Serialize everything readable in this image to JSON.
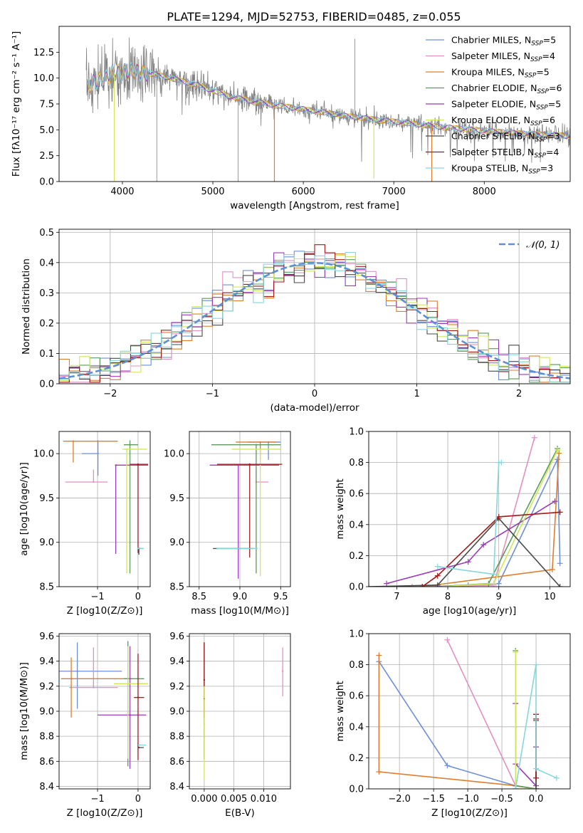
{
  "figure_title": "PLATE=1294, MJD=52753, FIBERID=0485, z=0.055",
  "colors": {
    "Chabrier MILES": "#6d8fd8",
    "Salpeter MILES": "#e48fc2",
    "Kroupa MILES": "#e07d2c",
    "Chabrier ELODIE": "#5b9a5b",
    "Salpeter ELODIE": "#9a3bb8",
    "Kroupa ELODIE": "#cfe85a",
    "Chabrier STELIB": "#4a4a4a",
    "Salpeter STELIB": "#a31919",
    "Kroupa STELIB": "#86d6dc",
    "data": "#808080",
    "normal": "#5b8fd6"
  },
  "chart_data": [
    {
      "id": "spectrum",
      "type": "line",
      "title": "PLATE=1294, MJD=52753, FIBERID=0485, z=0.055",
      "xlabel": "wavelength [Angstrom, rest frame]",
      "ylabel": "Flux [fλ10⁻¹⁷ erg cm⁻² s⁻¹ A⁻¹]",
      "xlim": [
        3300,
        8950
      ],
      "ylim": [
        0,
        15
      ],
      "xticks": [
        4000,
        5000,
        6000,
        7000,
        8000
      ],
      "yticks": [
        0.0,
        2.5,
        5.0,
        7.5,
        10.0,
        12.5
      ],
      "grid": false,
      "legend_position": "upper-right",
      "legend": [
        {
          "name": "Chabrier MILES",
          "n": "5"
        },
        {
          "name": "Salpeter MILES",
          "n": "4"
        },
        {
          "name": "Kroupa MILES",
          "n": "5"
        },
        {
          "name": "Chabrier ELODIE",
          "n": "6"
        },
        {
          "name": "Salpeter ELODIE",
          "n": "5"
        },
        {
          "name": "Kroupa ELODIE",
          "n": "6"
        },
        {
          "name": "Chabrier STELIB",
          "n": "3"
        },
        {
          "name": "Salpeter STELIB",
          "n": "4"
        },
        {
          "name": "Kroupa STELIB",
          "n": "3"
        }
      ],
      "continuum": {
        "x": [
          3600,
          3750,
          3900,
          4100,
          4400,
          4800,
          5200,
          5600,
          6000,
          6500,
          7000,
          7500,
          8000,
          8500,
          8950
        ],
        "y": [
          9.2,
          9.8,
          10.5,
          10.7,
          10.3,
          9.4,
          8.2,
          7.5,
          7.0,
          6.3,
          5.8,
          5.3,
          4.9,
          4.6,
          4.4
        ]
      },
      "data_spikes": [
        {
          "x": 5280,
          "y": 0.0
        },
        {
          "x": 6570,
          "y": 13.8
        },
        {
          "x": 3910,
          "y": 0.0
        },
        {
          "x": 4380,
          "y": 0.0
        }
      ],
      "model_dips": [
        {
          "x": 3910,
          "y": 0.0
        },
        {
          "x": 5680,
          "y": 0.0
        },
        {
          "x": 6780,
          "y": 0.3
        },
        {
          "x": 7420,
          "y": 0.0
        }
      ]
    },
    {
      "id": "residuals",
      "type": "histogram",
      "xlabel": "(data-model)/error",
      "ylabel": "Normed distribution",
      "xlim": [
        -2.5,
        2.5
      ],
      "ylim": [
        0,
        0.51
      ],
      "xticks": [
        -2,
        -1,
        0,
        1,
        2
      ],
      "yticks": [
        0.0,
        0.1,
        0.2,
        0.3,
        0.4,
        0.5
      ],
      "grid": true,
      "legend_position": "upper-right",
      "legend": [
        "𝒩(0, 1)"
      ],
      "bin_width": 0.1
    },
    {
      "id": "age_vs_Z",
      "type": "errorbar",
      "xlabel": "Z [log10(Z/Z⊙)]",
      "ylabel": "age  [log10(age/yr)]",
      "xlim": [
        -1.95,
        0.3
      ],
      "ylim": [
        8.5,
        10.25
      ],
      "xticks": [
        -1,
        0
      ],
      "yticks": [
        8.5,
        9.0,
        9.5,
        10.0
      ],
      "grid": true,
      "points": [
        {
          "series": "Chabrier MILES",
          "x": -0.99,
          "y": 10.0,
          "xerr": [
            0.4,
            0.0
          ],
          "yerr": [
            0.25,
            0.15
          ]
        },
        {
          "series": "Salpeter MILES",
          "x": -1.1,
          "y": 9.68,
          "xerr": [
            0.7,
            0.35
          ],
          "yerr": [
            0.0,
            0.14
          ]
        },
        {
          "series": "Kroupa MILES",
          "x": -1.6,
          "y": 10.14,
          "xerr": [
            0.25,
            1.1
          ],
          "yerr": [
            0.24,
            0.0
          ]
        },
        {
          "series": "Chabrier ELODIE",
          "x": -0.2,
          "y": 10.1,
          "xerr": [
            0.15,
            0.2
          ],
          "yerr": [
            1.45,
            0.05
          ]
        },
        {
          "series": "Salpeter ELODIE",
          "x": -0.55,
          "y": 9.87,
          "xerr": [
            0.0,
            0.8
          ],
          "yerr": [
            1.0,
            0.0
          ]
        },
        {
          "series": "Kroupa ELODIE",
          "x": -0.28,
          "y": 10.05,
          "xerr": [
            0.1,
            0.5
          ],
          "yerr": [
            1.4,
            0.0
          ]
        },
        {
          "series": "Chabrier STELIB",
          "x": 0.02,
          "y": 8.93,
          "xerr": [
            0.0,
            0.1
          ],
          "yerr": [
            0.07,
            0.0
          ]
        },
        {
          "series": "Salpeter STELIB",
          "x": 0.0,
          "y": 9.88,
          "xerr": [
            0.2,
            0.25
          ],
          "yerr": [
            1.0,
            0.0
          ]
        },
        {
          "series": "Kroupa STELIB",
          "x": 0.0,
          "y": 8.93,
          "xerr": [
            0.0,
            0.15
          ],
          "yerr": [
            0.0,
            0.0
          ]
        }
      ]
    },
    {
      "id": "age_vs_mass",
      "type": "errorbar",
      "xlabel": "mass [log10(M/M⊙)]",
      "ylabel": "",
      "xlim": [
        8.38,
        9.62
      ],
      "ylim": [
        8.5,
        10.25
      ],
      "xticks": [
        8.5,
        9.0,
        9.5
      ],
      "yticks": [
        8.5,
        9.0,
        9.5,
        10.0
      ],
      "grid": true,
      "points": [
        {
          "series": "Chabrier MILES",
          "x": 9.35,
          "y": 10.13,
          "xerr": [
            0.25,
            0.15
          ],
          "yerr": [
            0.2,
            0.0
          ]
        },
        {
          "series": "Salpeter MILES",
          "x": 9.2,
          "y": 9.68,
          "xerr": [
            0.0,
            0.15
          ],
          "yerr": [
            0.0,
            0.14
          ]
        },
        {
          "series": "Kroupa MILES",
          "x": 9.25,
          "y": 10.13,
          "xerr": [
            0.3,
            0.2
          ],
          "yerr": [
            0.2,
            0.0
          ]
        },
        {
          "series": "Chabrier ELODIE",
          "x": 9.2,
          "y": 10.1,
          "xerr": [
            0.55,
            0.3
          ],
          "yerr": [
            1.45,
            0.0
          ]
        },
        {
          "series": "Salpeter ELODIE",
          "x": 8.98,
          "y": 9.87,
          "xerr": [
            0.35,
            0.5
          ],
          "yerr": [
            1.28,
            0.0
          ]
        },
        {
          "series": "Kroupa ELODIE",
          "x": 9.25,
          "y": 10.05,
          "xerr": [
            0.35,
            0.25
          ],
          "yerr": [
            1.43,
            0.0
          ]
        },
        {
          "series": "Chabrier STELIB",
          "x": 8.72,
          "y": 8.93,
          "xerr": [
            0.05,
            0.45
          ],
          "yerr": [
            0.0,
            0.0
          ]
        },
        {
          "series": "Salpeter STELIB",
          "x": 9.12,
          "y": 9.88,
          "xerr": [
            0.4,
            0.4
          ],
          "yerr": [
            1.05,
            0.0
          ]
        },
        {
          "series": "Kroupa STELIB",
          "x": 8.72,
          "y": 8.93,
          "xerr": [
            0.0,
            0.5
          ],
          "yerr": [
            0.0,
            0.0
          ]
        }
      ]
    },
    {
      "id": "mass_weight_vs_age",
      "type": "line",
      "xlabel": "age  [log10(age/yr)]",
      "ylabel": "mass weight",
      "xlim": [
        6.45,
        10.4
      ],
      "ylim": [
        0,
        1.0
      ],
      "xticks": [
        7,
        8,
        9,
        10
      ],
      "yticks": [
        0.0,
        0.2,
        0.4,
        0.6,
        0.8,
        1.0
      ],
      "grid": true,
      "series": [
        {
          "name": "Chabrier MILES",
          "x": [
            8.4,
            9.0,
            10.15,
            10.2
          ],
          "y": [
            0.01,
            0.02,
            0.82,
            0.15
          ]
        },
        {
          "name": "Salpeter MILES",
          "x": [
            7.3,
            8.9,
            9.7
          ],
          "y": [
            0.0,
            0.01,
            0.96
          ]
        },
        {
          "name": "Kroupa MILES",
          "x": [
            7.5,
            10.05,
            10.18
          ],
          "y": [
            0.0,
            0.11,
            0.86
          ]
        },
        {
          "name": "Chabrier ELODIE",
          "x": [
            7.8,
            8.8,
            10.15
          ],
          "y": [
            0.0,
            0.02,
            0.89
          ]
        },
        {
          "name": "Salpeter ELODIE",
          "x": [
            6.8,
            8.4,
            8.7,
            10.1
          ],
          "y": [
            0.02,
            0.16,
            0.27,
            0.55
          ]
        },
        {
          "name": "Kroupa ELODIE",
          "x": [
            7.9,
            8.9,
            10.15
          ],
          "y": [
            0.0,
            0.02,
            0.88
          ]
        },
        {
          "name": "Chabrier STELIB",
          "x": [
            6.45,
            7.8,
            9.0,
            10.2
          ],
          "y": [
            0.0,
            0.01,
            0.44,
            0.0
          ]
        },
        {
          "name": "Salpeter STELIB",
          "x": [
            7.5,
            7.8,
            9.0,
            10.2
          ],
          "y": [
            0.0,
            0.07,
            0.45,
            0.48
          ]
        },
        {
          "name": "Kroupa STELIB",
          "x": [
            7.8,
            8.9,
            9.0,
            9.05
          ],
          "y": [
            0.13,
            0.08,
            0.8,
            0.8
          ]
        }
      ]
    },
    {
      "id": "mass_vs_Z",
      "type": "errorbar",
      "xlabel": "Z [log10(Z/Z⊙)]",
      "ylabel": "mass [log10(M/M⊙)]",
      "xlim": [
        -1.95,
        0.3
      ],
      "ylim": [
        8.38,
        9.62
      ],
      "xticks": [
        -1,
        0
      ],
      "yticks": [
        8.4,
        8.6,
        8.8,
        9.0,
        9.2,
        9.4,
        9.6
      ],
      "grid": true,
      "points": [
        {
          "series": "Chabrier MILES",
          "x": -1.5,
          "y": 9.32,
          "xerr": [
            0.5,
            1.1
          ],
          "yerr": [
            0.3,
            0.23
          ]
        },
        {
          "series": "Salpeter MILES",
          "x": -1.1,
          "y": 9.19,
          "xerr": [
            0.6,
            0.6
          ],
          "yerr": [
            0.0,
            0.32
          ]
        },
        {
          "series": "Kroupa MILES",
          "x": -1.65,
          "y": 9.26,
          "xerr": [
            0.25,
            1.5
          ],
          "yerr": [
            0.31,
            0.17
          ]
        },
        {
          "series": "Chabrier ELODIE",
          "x": -0.25,
          "y": 9.26,
          "xerr": [
            0.1,
            0.4
          ],
          "yerr": [
            0.7,
            0.3
          ]
        },
        {
          "series": "Salpeter ELODIE",
          "x": -0.2,
          "y": 8.97,
          "xerr": [
            0.8,
            0.4
          ],
          "yerr": [
            0.43,
            0.55
          ]
        },
        {
          "series": "Kroupa ELODIE",
          "x": -0.25,
          "y": 9.22,
          "xerr": [
            0.35,
            0.5
          ],
          "yerr": [
            0.6,
            0.3
          ]
        },
        {
          "series": "Chabrier STELIB",
          "x": 0.02,
          "y": 8.71,
          "xerr": [
            0.0,
            0.12
          ],
          "yerr": [
            0.0,
            0.0
          ]
        },
        {
          "series": "Salpeter STELIB",
          "x": 0.0,
          "y": 9.11,
          "xerr": [
            0.1,
            0.15
          ],
          "yerr": [
            0.5,
            0.35
          ]
        },
        {
          "series": "Kroupa STELIB",
          "x": 0.02,
          "y": 8.73,
          "xerr": [
            0.0,
            0.18
          ],
          "yerr": [
            0.0,
            0.0
          ]
        }
      ]
    },
    {
      "id": "mass_vs_ebv",
      "type": "errorbar",
      "xlabel": "E(B-V)",
      "ylabel": "",
      "xlim": [
        -0.0025,
        0.0145
      ],
      "ylim": [
        8.38,
        9.62
      ],
      "xticks": [
        0.0,
        0.005,
        0.01
      ],
      "xtick_labels": [
        "0.000",
        "0.005",
        "0.010"
      ],
      "yticks": [
        8.4,
        8.6,
        8.8,
        9.0,
        9.2,
        9.4,
        9.6
      ],
      "grid": true,
      "points": [
        {
          "series": "Salpeter MILES",
          "x": 0.0132,
          "y": 9.32,
          "xerr": [
            0.0,
            0.0
          ],
          "yerr": [
            0.2,
            0.19
          ]
        },
        {
          "series": "Chabrier STELIB",
          "x": 0.0,
          "y": 9.1,
          "xerr": [
            0.0,
            0.0
          ],
          "yerr": [
            0.48,
            0.45
          ]
        },
        {
          "series": "Salpeter STELIB",
          "x": 0.0,
          "y": 9.25,
          "xerr": [
            0.0,
            0.0
          ],
          "yerr": [
            0.3,
            0.3
          ]
        },
        {
          "series": "Kroupa ELODIE",
          "x": 0.0,
          "y": 8.9,
          "xerr": [
            0.0,
            0.0
          ],
          "yerr": [
            0.45,
            0.3
          ]
        }
      ]
    },
    {
      "id": "mass_weight_vs_Z",
      "type": "line",
      "xlabel": "Z [log10(Z/Z⊙)]",
      "ylabel": "mass weight",
      "xlim": [
        -2.45,
        0.5
      ],
      "ylim": [
        0,
        1.0
      ],
      "xticks": [
        -2.0,
        -1.5,
        -1.0,
        -0.5,
        0.0
      ],
      "xtick_labels": [
        "−2.0",
        "−1.5",
        "−1.0",
        "−0.5",
        "0.0"
      ],
      "yticks": [
        0.0,
        0.2,
        0.4,
        0.6,
        0.8,
        1.0
      ],
      "grid": true,
      "series": [
        {
          "name": "Chabrier MILES",
          "x": [
            -2.3,
            -1.3,
            -0.3,
            0.0
          ],
          "y": [
            0.82,
            0.15,
            0.02,
            0.0
          ]
        },
        {
          "name": "Salpeter MILES",
          "x": [
            -1.3,
            -0.3,
            0.0
          ],
          "y": [
            0.96,
            0.02,
            0.0
          ]
        },
        {
          "name": "Kroupa MILES",
          "x": [
            -2.3,
            -2.3,
            -0.3,
            0.0
          ],
          "y": [
            0.86,
            0.11,
            0.02,
            0.0
          ]
        },
        {
          "name": "Chabrier ELODIE",
          "x": [
            -0.3,
            -0.3,
            0.0
          ],
          "y": [
            0.89,
            0.02,
            0.0
          ]
        },
        {
          "name": "Salpeter ELODIE",
          "x": [
            -0.3,
            -0.3,
            0.0,
            0.0
          ],
          "y": [
            0.55,
            0.16,
            0.02,
            0.27
          ]
        },
        {
          "name": "Kroupa ELODIE",
          "x": [
            -0.3,
            -0.3,
            0.0
          ],
          "y": [
            0.88,
            0.0,
            0.0
          ]
        },
        {
          "name": "Chabrier STELIB",
          "x": [
            0.0,
            0.0,
            0.0
          ],
          "y": [
            0.44,
            0.48,
            0.0
          ]
        },
        {
          "name": "Salpeter STELIB",
          "x": [
            0.0,
            0.0,
            0.0
          ],
          "y": [
            0.07,
            0.45,
            0.48
          ]
        },
        {
          "name": "Kroupa STELIB",
          "x": [
            -0.3,
            0.0,
            0.0,
            0.3
          ],
          "y": [
            0.0,
            0.8,
            0.13,
            0.07
          ]
        }
      ]
    }
  ]
}
